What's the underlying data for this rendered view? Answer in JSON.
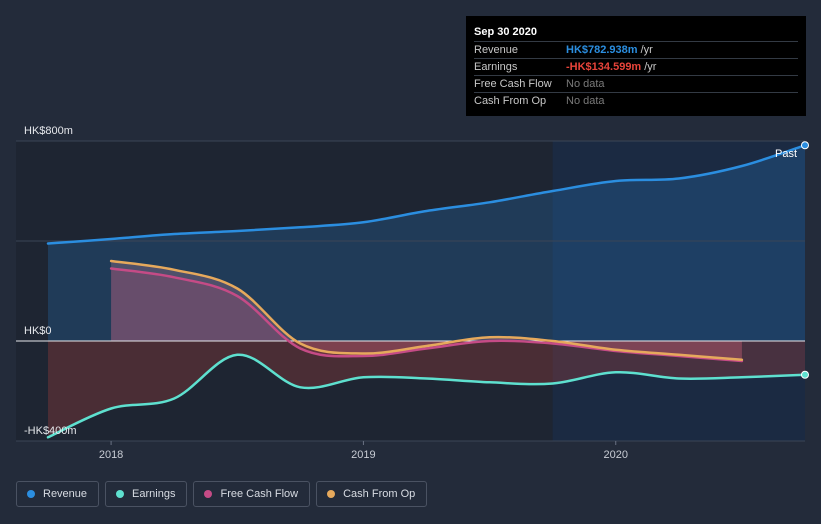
{
  "chart_data": {
    "type": "area",
    "title": "",
    "y_ticks": [
      {
        "value": 800,
        "label": "HK$800m"
      },
      {
        "value": 0,
        "label": "HK$0"
      },
      {
        "value": -400,
        "label": "-HK$400m"
      }
    ],
    "ylim": [
      -400,
      800
    ],
    "xlim": [
      2017.75,
      2020.75
    ],
    "x_ticks": [
      {
        "value": 2018,
        "label": "2018"
      },
      {
        "value": 2019,
        "label": "2019"
      },
      {
        "value": 2020,
        "label": "2020"
      }
    ],
    "past_label": "Past",
    "past_start": 2019.75,
    "series": [
      {
        "name": "Revenue",
        "color": "#2b8ee0",
        "x": [
          2017.75,
          2018.0,
          2018.25,
          2018.5,
          2018.75,
          2019.0,
          2019.25,
          2019.5,
          2019.75,
          2020.0,
          2020.25,
          2020.5,
          2020.75
        ],
        "values": [
          390,
          408,
          428,
          440,
          455,
          475,
          520,
          555,
          600,
          640,
          650,
          700,
          783
        ]
      },
      {
        "name": "Earnings",
        "color": "#5ee0cf",
        "x": [
          2017.75,
          2018.0,
          2018.25,
          2018.5,
          2018.75,
          2019.0,
          2019.25,
          2019.5,
          2019.75,
          2020.0,
          2020.25,
          2020.5,
          2020.75
        ],
        "values": [
          -385,
          -270,
          -230,
          -55,
          -185,
          -145,
          -150,
          -165,
          -170,
          -125,
          -150,
          -145,
          -135
        ]
      },
      {
        "name": "Free Cash Flow",
        "color": "#c54b86",
        "x": [
          2018.0,
          2018.25,
          2018.5,
          2018.75,
          2019.0,
          2019.25,
          2019.5,
          2019.75,
          2020.0,
          2020.25,
          2020.5
        ],
        "values": [
          290,
          255,
          180,
          -30,
          -60,
          -30,
          0,
          -10,
          -40,
          -60,
          -80
        ]
      },
      {
        "name": "Cash From Op",
        "color": "#e6a95c",
        "x": [
          2018.0,
          2018.25,
          2018.5,
          2018.75,
          2019.0,
          2019.25,
          2019.5,
          2019.75,
          2020.0,
          2020.25,
          2020.5
        ],
        "values": [
          320,
          285,
          210,
          -10,
          -50,
          -20,
          15,
          0,
          -35,
          -55,
          -75
        ]
      }
    ]
  },
  "tooltip": {
    "date": "Sep 30 2020",
    "rows": [
      {
        "label": "Revenue",
        "value": "HK$782.938m",
        "unit": "/yr",
        "color": "#2b8ee0"
      },
      {
        "label": "Earnings",
        "value": "-HK$134.599m",
        "unit": "/yr",
        "color": "#e8443a"
      },
      {
        "label": "Free Cash Flow",
        "value": "No data",
        "unit": "",
        "color": "#7a7a7a"
      },
      {
        "label": "Cash From Op",
        "value": "No data",
        "unit": "",
        "color": "#7a7a7a"
      }
    ]
  },
  "legend": [
    {
      "label": "Revenue",
      "color": "#2b8ee0"
    },
    {
      "label": "Earnings",
      "color": "#5ee0cf"
    },
    {
      "label": "Free Cash Flow",
      "color": "#c54b86"
    },
    {
      "label": "Cash From Op",
      "color": "#e6a95c"
    }
  ]
}
